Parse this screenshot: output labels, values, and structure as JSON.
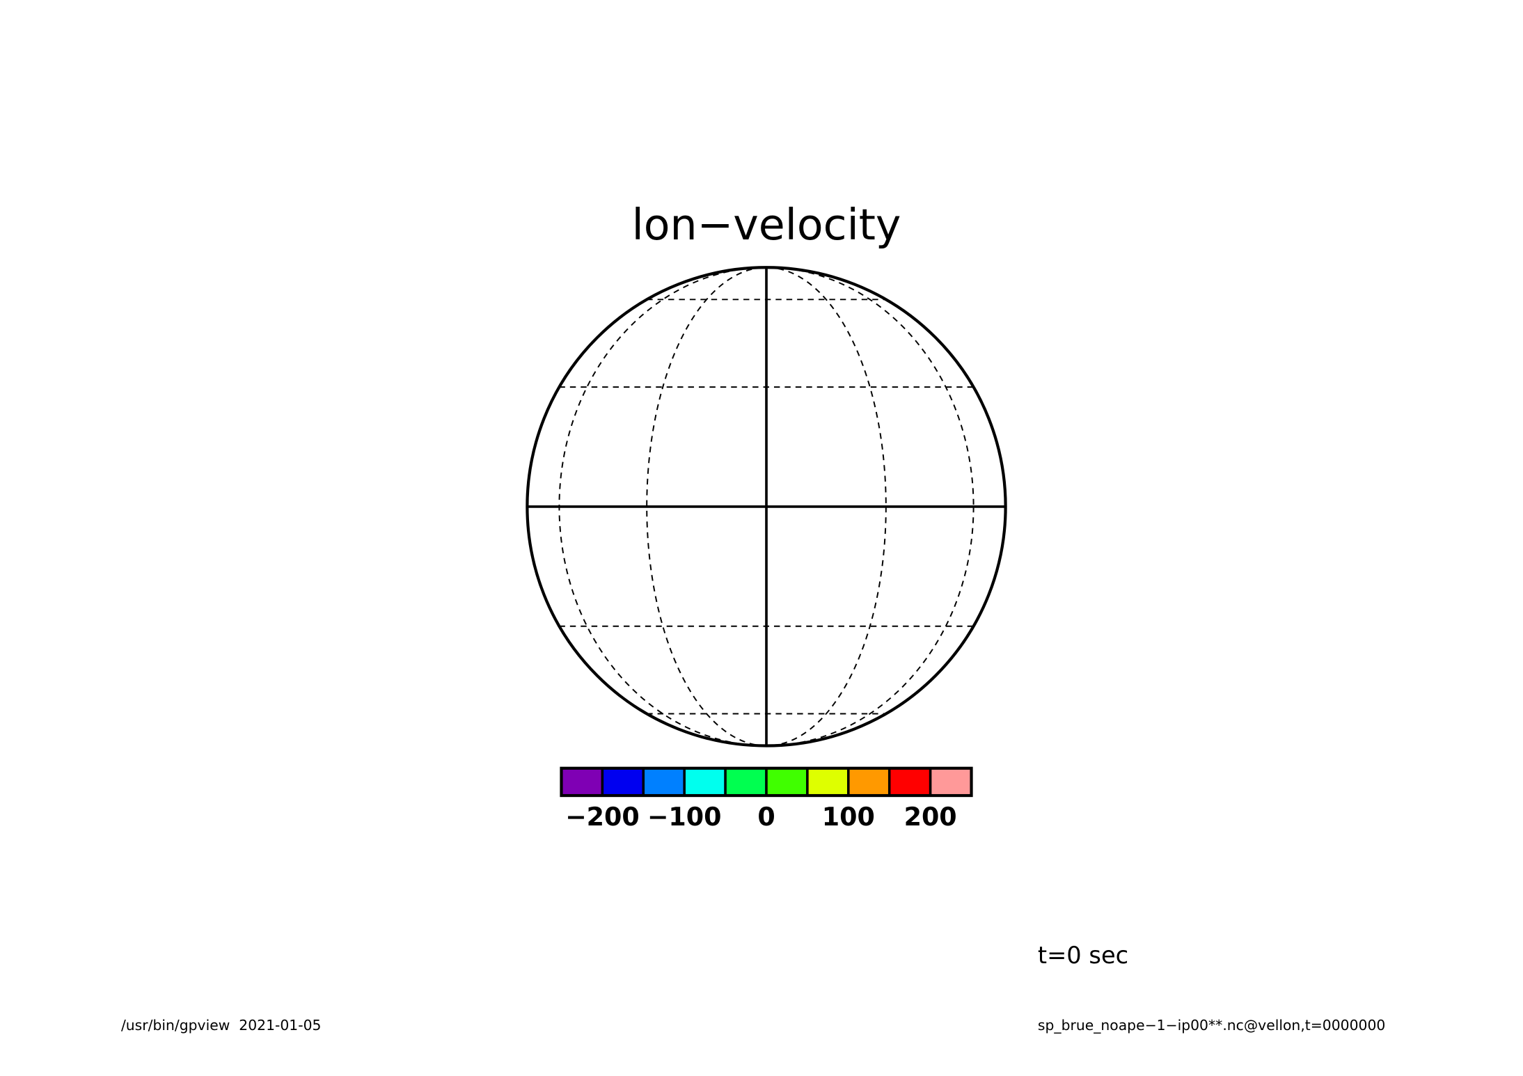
{
  "chart_data": {
    "type": "map",
    "title": "lon−velocity",
    "colorbar": {
      "bins": [
        -250,
        -200,
        -150,
        -100,
        -50,
        0,
        50,
        100,
        150,
        200,
        250
      ],
      "colors": [
        "#7f00b4",
        "#0000f0",
        "#0080ff",
        "#00ffee",
        "#00ff50",
        "#40ff00",
        "#deff00",
        "#ff9900",
        "#ff0000",
        "#ff9999"
      ],
      "xlim": [
        -250,
        250
      ],
      "xticks": [
        {
          "value": -200,
          "label": "−200"
        },
        {
          "value": -100,
          "label": "−100"
        },
        0,
        100,
        200
      ]
    },
    "annotation": "t=0 sec",
    "footer_left": "/usr/bin/gpview  2021-01-05",
    "footer_right": "sp_brue_noape−1−ip00**.nc@vellon,t=0000000"
  }
}
